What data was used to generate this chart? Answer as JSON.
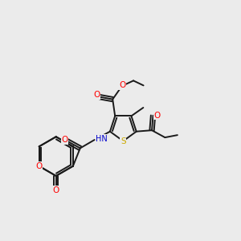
{
  "background_color": "#ebebeb",
  "bond_color": "#1a1a1a",
  "atom_colors": {
    "O": "#ff0000",
    "N": "#0000cc",
    "S": "#ccaa00",
    "C": "#1a1a1a",
    "H": "#1a1a1a"
  },
  "figsize": [
    3.0,
    3.0
  ],
  "dpi": 100,
  "xlim": [
    0,
    10
  ],
  "ylim": [
    0,
    10
  ]
}
